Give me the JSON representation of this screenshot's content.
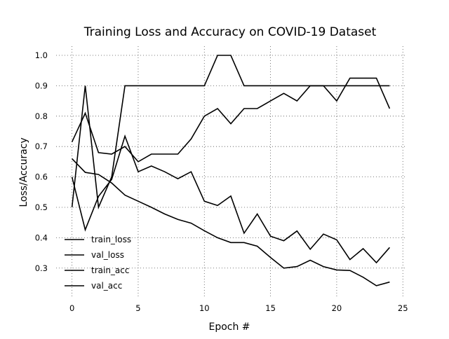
{
  "chart_data": {
    "type": "line",
    "title": "Training Loss and Accuracy on COVID-19 Dataset",
    "xlabel": "Epoch #",
    "ylabel": "Loss/Accuracy",
    "xlim": [
      -1.2,
      25.2
    ],
    "ylim": [
      0.205,
      1.03
    ],
    "xticks": [
      0,
      5,
      10,
      15,
      20,
      25
    ],
    "yticks": [
      0.3,
      0.4,
      0.5,
      0.6,
      0.7,
      0.8,
      0.9,
      1.0
    ],
    "xtick_labels": [
      "0",
      "5",
      "10",
      "15",
      "20",
      "25"
    ],
    "ytick_labels": [
      "0.3",
      "0.4",
      "0.5",
      "0.6",
      "0.7",
      "0.8",
      "0.9",
      "1.0"
    ],
    "grid": "dotted",
    "legend_position": "lower-left",
    "x": [
      0,
      1,
      2,
      3,
      4,
      5,
      6,
      7,
      8,
      9,
      10,
      11,
      12,
      13,
      14,
      15,
      16,
      17,
      18,
      19,
      20,
      21,
      22,
      23,
      24
    ],
    "series": [
      {
        "name": "train_loss",
        "color": "#000000",
        "values": [
          0.66,
          0.615,
          0.608,
          0.58,
          0.54,
          0.52,
          0.5,
          0.478,
          0.46,
          0.448,
          0.423,
          0.4,
          0.384,
          0.384,
          0.372,
          0.335,
          0.3,
          0.305,
          0.326,
          0.305,
          0.294,
          0.292,
          0.27,
          0.242,
          0.254
        ]
      },
      {
        "name": "val_loss",
        "color": "#000000",
        "values": [
          0.6,
          0.426,
          0.536,
          0.592,
          0.734,
          0.617,
          0.636,
          0.617,
          0.594,
          0.617,
          0.52,
          0.506,
          0.537,
          0.415,
          0.478,
          0.405,
          0.39,
          0.422,
          0.362,
          0.412,
          0.393,
          0.328,
          0.364,
          0.318,
          0.368
        ]
      },
      {
        "name": "train_acc",
        "color": "#000000",
        "values": [
          0.715,
          0.81,
          0.68,
          0.675,
          0.7,
          0.65,
          0.675,
          0.675,
          0.675,
          0.725,
          0.8,
          0.825,
          0.775,
          0.825,
          0.825,
          0.85,
          0.875,
          0.85,
          0.9,
          0.9,
          0.85,
          0.925,
          0.925,
          0.925,
          0.825
        ]
      },
      {
        "name": "val_acc",
        "color": "#000000",
        "values": [
          0.5,
          0.9,
          0.5,
          0.6,
          0.9,
          0.9,
          0.9,
          0.9,
          0.9,
          0.9,
          0.9,
          1.0,
          1.0,
          0.9,
          0.9,
          0.9,
          0.9,
          0.9,
          0.9,
          0.9,
          0.9,
          0.9,
          0.9,
          0.9,
          0.9
        ]
      }
    ]
  }
}
